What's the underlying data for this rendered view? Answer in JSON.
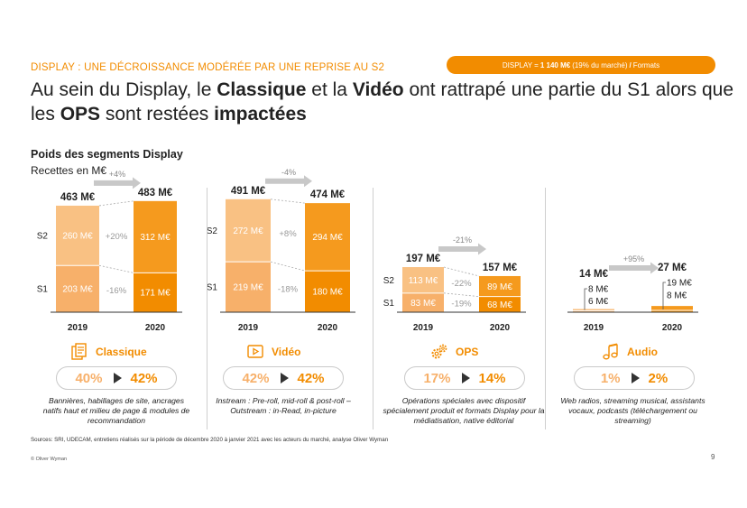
{
  "kicker": "DISPLAY : UNE DÉCROISSANCE MODÉRÉE PAR UNE REPRISE AU S2",
  "pill": {
    "pre": "DISPLAY = ",
    "bold": "1 140 M€",
    "mid": " (19% du marché) ",
    "sep": "/",
    "post": " Formats"
  },
  "title": {
    "p1": "Au sein du Display, le ",
    "b1": "Classique",
    "p2": " et la ",
    "b2": "Vidéo",
    "p3": " ont rattrapé une partie du S1 alors que les ",
    "b3": "OPS",
    "p4": " sont restées ",
    "b4": "impactées"
  },
  "subtitle": "Poids des segments Display",
  "units": "Recettes en M€",
  "colors": {
    "s1_2019": "#f7b06a",
    "s2_2019": "#f9c183",
    "s1_2020": "#f28c00",
    "s2_2020": "#f59a1e",
    "accent": "#f28c00",
    "arrow": "#c8c8c8"
  },
  "chart_data": {
    "type": "bar",
    "stacked": true,
    "series_names": [
      "S1",
      "S2"
    ],
    "categories": [
      "2019",
      "2020"
    ],
    "groups": [
      {
        "name": "Classique",
        "totals": [
          "463 M€",
          "483 M€"
        ],
        "growth": "+4%",
        "s1": [
          203,
          171
        ],
        "s2": [
          260,
          312
        ],
        "s1_labels": [
          "203 M€",
          "171 M€"
        ],
        "s2_labels": [
          "260 M€",
          "312 M€"
        ],
        "s1_change": "-16%",
        "s2_change": "+20%"
      },
      {
        "name": "Vidéo",
        "totals": [
          "491 M€",
          "474 M€"
        ],
        "growth": "-4%",
        "s1": [
          219,
          180
        ],
        "s2": [
          272,
          294
        ],
        "s1_labels": [
          "219 M€",
          "180 M€"
        ],
        "s2_labels": [
          "272 M€",
          "294 M€"
        ],
        "s1_change": "-18%",
        "s2_change": "+8%"
      },
      {
        "name": "OPS",
        "totals": [
          "197 M€",
          "157 M€"
        ],
        "growth": "-21%",
        "s1": [
          83,
          68
        ],
        "s2": [
          113,
          89
        ],
        "s1_labels": [
          "83 M€",
          "68 M€"
        ],
        "s2_labels": [
          "113 M€",
          "89 M€"
        ],
        "s1_change": "-19%",
        "s2_change": "-22%"
      },
      {
        "name": "Audio",
        "totals": [
          "14 M€",
          "27 M€"
        ],
        "growth": "+95%",
        "s1": [
          6,
          8
        ],
        "s2": [
          8,
          19
        ],
        "s1_labels": [
          "6 M€",
          "8 M€"
        ],
        "s2_labels": [
          "8 M€",
          "19 M€"
        ]
      }
    ]
  },
  "segments": [
    {
      "name": "Classique",
      "icon": "document-icon",
      "share_2019": "40%",
      "share_2020": "42%",
      "desc": "Bannières, habillages de site, ancrages natifs haut et milieu de page & modules de recommandation"
    },
    {
      "name": "Vidéo",
      "icon": "play-icon",
      "share_2019": "42%",
      "share_2020": "42%",
      "desc": "Instream : Pre-roll, mid-roll & post-roll – Outstream : in-Read, in-picture"
    },
    {
      "name": "OPS",
      "icon": "gears-icon",
      "share_2019": "17%",
      "share_2020": "14%",
      "desc": "Opérations spéciales avec dispositif spécialement produit et formats Display pour la médiatisation, native éditorial"
    },
    {
      "name": "Audio",
      "icon": "music-note-icon",
      "share_2019": "1%",
      "share_2020": "2%",
      "desc": "Web radios, streaming musical, assistants vocaux, podcasts (téléchargement ou streaming)"
    }
  ],
  "sources": "Sources: SRI, UDECAM, entretiens réalisés sur la période de décembre 2020 à janvier 2021 avec les acteurs du marché, analyse Oliver Wyman",
  "copyright": "© Oliver Wyman",
  "page_number": "9"
}
